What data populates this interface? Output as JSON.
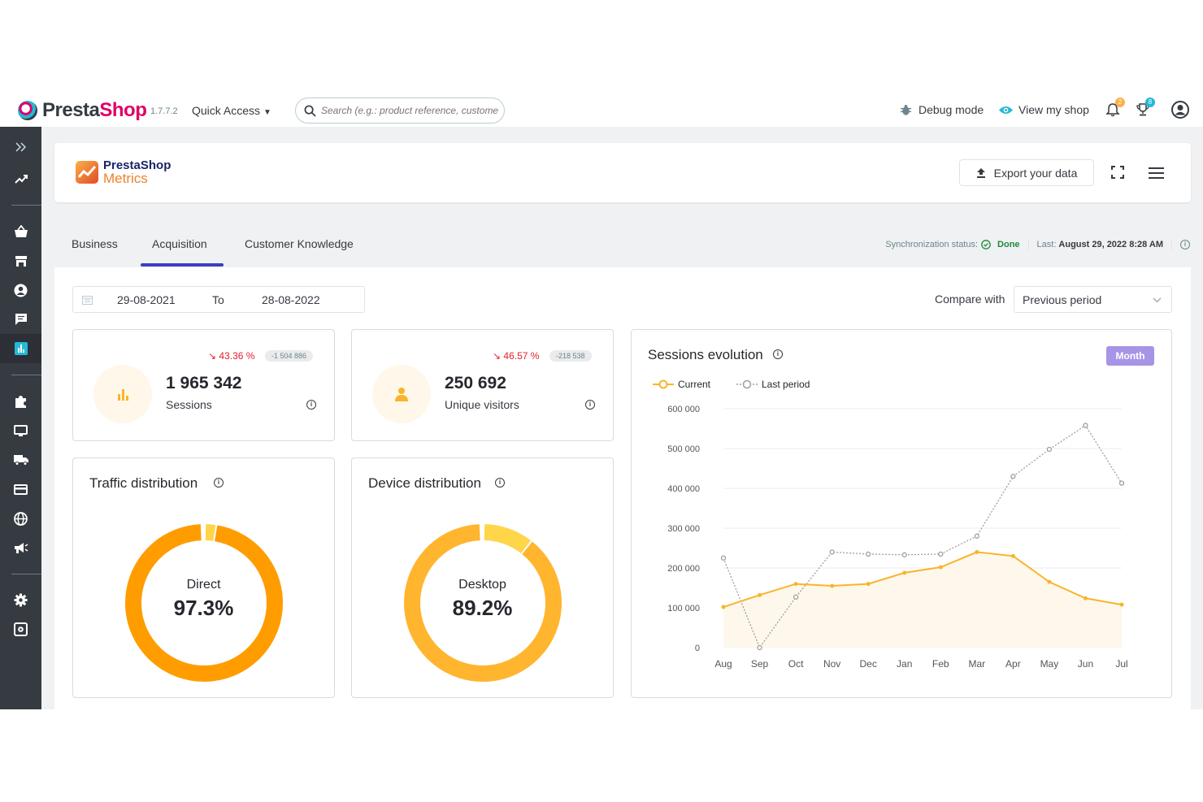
{
  "topbar": {
    "brand_part1": "Presta",
    "brand_part2": "Shop",
    "version": "1.7.7.2",
    "quick_access": "Quick Access",
    "search_placeholder": "Search (e.g.: product reference, custome",
    "debug_mode": "Debug mode",
    "view_shop": "View my shop",
    "notifications_count": "2",
    "trophy_count": "8"
  },
  "sidebar": {
    "items": [
      "expand-icon",
      "stats-icon",
      "orders-icon",
      "catalog-icon",
      "customers-icon",
      "messages-icon",
      "metrics-icon",
      "modules-icon",
      "design-icon",
      "shipping-icon",
      "payment-icon",
      "international-icon",
      "marketing-icon",
      "settings-icon",
      "advanced-icon"
    ],
    "active": "metrics-icon"
  },
  "header": {
    "logo_line1": "PrestaShop",
    "logo_line2": "Metrics",
    "export_label": "Export your data"
  },
  "tabs": [
    "Business",
    "Acquisition",
    "Customer Knowledge"
  ],
  "active_tab": "Acquisition",
  "sync": {
    "label": "Synchronization status:",
    "status": "Done",
    "last_label": "Last:",
    "last_date": "August 29, 2022 8:28 AM"
  },
  "filters": {
    "date_from": "29-08-2021",
    "to_label": "To",
    "date_to": "28-08-2022",
    "compare_label": "Compare with",
    "compare_value": "Previous period"
  },
  "kpis": [
    {
      "trend": "43.36 %",
      "diff": "-1 504 886",
      "value": "1 965 342",
      "label": "Sessions"
    },
    {
      "trend": "46.57 %",
      "diff": "-218 538",
      "value": "250 692",
      "label": "Unique visitors"
    }
  ],
  "traffic": {
    "title": "Traffic distribution",
    "label": "Direct",
    "value": "97.3%",
    "share": 0.973,
    "color": "#ff9d00"
  },
  "device": {
    "title": "Device distribution",
    "label": "Desktop",
    "value": "89.2%",
    "share": 0.892,
    "color": "#ffb52e"
  },
  "sessions_chart": {
    "title": "Sessions evolution",
    "period_button": "Month",
    "legend_current": "Current",
    "legend_last": "Last period"
  },
  "colors": {
    "accent": "#25b9d7",
    "brand": "#df0067",
    "current_series": "#f8b52b",
    "last_series": "#9e9e9e",
    "negative": "#e4202d",
    "tab_active": "#3b3fc4",
    "month_button": "#a794e6"
  },
  "chart_data": {
    "type": "line",
    "categories": [
      "Aug",
      "Sep",
      "Oct",
      "Nov",
      "Dec",
      "Jan",
      "Feb",
      "Mar",
      "Apr",
      "May",
      "Jun",
      "Jul"
    ],
    "series": [
      {
        "name": "Current",
        "values": [
          102000,
          132000,
          160000,
          155000,
          160000,
          188000,
          202000,
          240000,
          230000,
          165000,
          124000,
          108000
        ]
      },
      {
        "name": "Last period",
        "values": [
          225000,
          0,
          127000,
          240000,
          235000,
          233000,
          235000,
          280000,
          430000,
          498000,
          558000,
          413000
        ]
      }
    ],
    "y_ticks": [
      "600 000",
      "500 000",
      "400 000",
      "300 000",
      "200 000",
      "100 000",
      "0"
    ],
    "ylim": [
      0,
      600000
    ],
    "grid": true,
    "legend": "top-left"
  }
}
